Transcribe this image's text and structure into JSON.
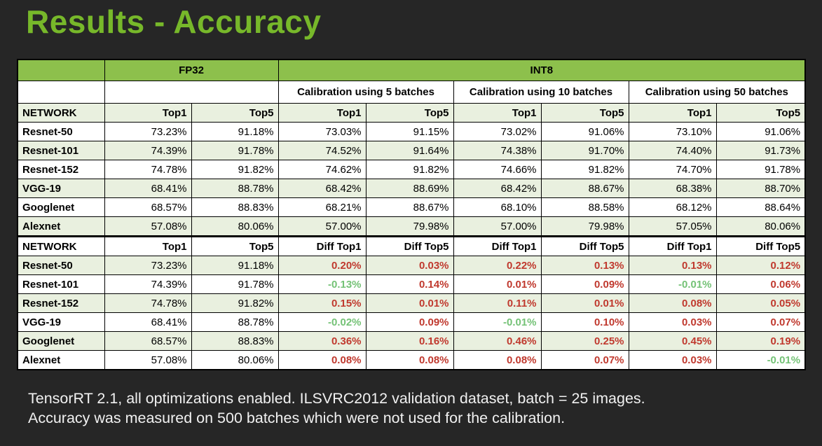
{
  "page": {
    "title": "Results - Accuracy",
    "footer_line1": "TensorRT 2.1, all optimizations enabled. ILSVRC2012 validation dataset, batch = 25 images.",
    "footer_line2": "Accuracy was measured on 500 batches which were not used for the calibration."
  },
  "colors": {
    "background": "#262626",
    "title_green": "#77b82a",
    "header_green": "#8dc04c",
    "row_shaded": "#e9f0df",
    "row_plain": "#ffffff",
    "diff_positive_red": "#c0392e",
    "diff_negative_green": "#74c276",
    "footer_text": "#f1f1f1",
    "border": "#000000"
  },
  "table": {
    "group_row": [
      {
        "label": "",
        "span": 1
      },
      {
        "label": "FP32",
        "span": 2
      },
      {
        "label": "INT8",
        "span": 6
      }
    ],
    "calibration_row": [
      {
        "label": "",
        "span": 1
      },
      {
        "label": "",
        "span": 2
      },
      {
        "label": "Calibration using 5 batches",
        "span": 2
      },
      {
        "label": "Calibration using 10 batches",
        "span": 2
      },
      {
        "label": "Calibration using 50 batches",
        "span": 2
      }
    ],
    "accuracy_section": {
      "columns": [
        "NETWORK",
        "Top1",
        "Top5",
        "Top1",
        "Top5",
        "Top1",
        "Top5",
        "Top1",
        "Top5"
      ],
      "rows": [
        [
          "Resnet-50",
          "73.23%",
          "91.18%",
          "73.03%",
          "91.15%",
          "73.02%",
          "91.06%",
          "73.10%",
          "91.06%"
        ],
        [
          "Resnet-101",
          "74.39%",
          "91.78%",
          "74.52%",
          "91.64%",
          "74.38%",
          "91.70%",
          "74.40%",
          "91.73%"
        ],
        [
          "Resnet-152",
          "74.78%",
          "91.82%",
          "74.62%",
          "91.82%",
          "74.66%",
          "91.82%",
          "74.70%",
          "91.78%"
        ],
        [
          "VGG-19",
          "68.41%",
          "88.78%",
          "68.42%",
          "88.69%",
          "68.42%",
          "88.67%",
          "68.38%",
          "88.70%"
        ],
        [
          "Googlenet",
          "68.57%",
          "88.83%",
          "68.21%",
          "88.67%",
          "68.10%",
          "88.58%",
          "68.12%",
          "88.64%"
        ],
        [
          "Alexnet",
          "57.08%",
          "80.06%",
          "57.00%",
          "79.98%",
          "57.00%",
          "79.98%",
          "57.05%",
          "80.06%"
        ]
      ]
    },
    "diff_section": {
      "columns": [
        "NETWORK",
        "Top1",
        "Top5",
        "Diff Top1",
        "Diff Top5",
        "Diff Top1",
        "Diff Top5",
        "Diff Top1",
        "Diff Top5"
      ],
      "rows": [
        [
          "Resnet-50",
          "73.23%",
          "91.18%",
          "0.20%",
          "0.03%",
          "0.22%",
          "0.13%",
          "0.13%",
          "0.12%"
        ],
        [
          "Resnet-101",
          "74.39%",
          "91.78%",
          "-0.13%",
          "0.14%",
          "0.01%",
          "0.09%",
          "-0.01%",
          "0.06%"
        ],
        [
          "Resnet-152",
          "74.78%",
          "91.82%",
          "0.15%",
          "0.01%",
          "0.11%",
          "0.01%",
          "0.08%",
          "0.05%"
        ],
        [
          "VGG-19",
          "68.41%",
          "88.78%",
          "-0.02%",
          "0.09%",
          "-0.01%",
          "0.10%",
          "0.03%",
          "0.07%"
        ],
        [
          "Googlenet",
          "68.57%",
          "88.83%",
          "0.36%",
          "0.16%",
          "0.46%",
          "0.25%",
          "0.45%",
          "0.19%"
        ],
        [
          "Alexnet",
          "57.08%",
          "80.06%",
          "0.08%",
          "0.08%",
          "0.08%",
          "0.07%",
          "0.03%",
          "-0.01%"
        ]
      ]
    }
  }
}
